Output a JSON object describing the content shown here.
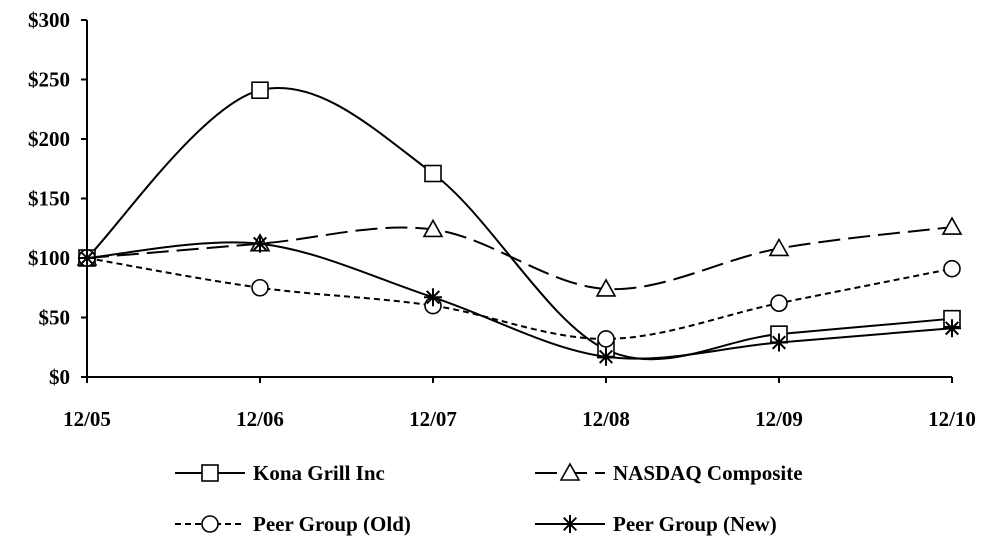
{
  "chart_data": {
    "type": "line",
    "title": "",
    "xlabel": "",
    "ylabel": "",
    "categories": [
      "12/05",
      "12/06",
      "12/07",
      "12/08",
      "12/09",
      "12/10"
    ],
    "y_tick_labels": [
      "$0",
      "$50",
      "$100",
      "$150",
      "$200",
      "$250",
      "$300"
    ],
    "ylim": [
      0,
      300
    ],
    "grid": false,
    "legend_position": "bottom",
    "series": [
      {
        "name": "Kona Grill Inc",
        "values": [
          100,
          241,
          171,
          23,
          36,
          49
        ],
        "marker": "square",
        "dash": "solid"
      },
      {
        "name": "NASDAQ Composite",
        "values": [
          100,
          112,
          124,
          74,
          108,
          126
        ],
        "marker": "triangle",
        "dash": "long-dash"
      },
      {
        "name": "Peer Group (Old)",
        "values": [
          100,
          75,
          60,
          32,
          62,
          91
        ],
        "marker": "circle",
        "dash": "short-dash"
      },
      {
        "name": "Peer Group (New)",
        "values": [
          100,
          112,
          67,
          17,
          29,
          41
        ],
        "marker": "asterisk",
        "dash": "solid"
      }
    ]
  }
}
